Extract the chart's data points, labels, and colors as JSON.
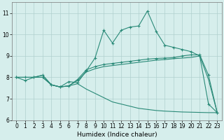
{
  "xlabel": "Humidex (Indice chaleur)",
  "x": [
    0,
    1,
    2,
    3,
    4,
    5,
    6,
    7,
    8,
    9,
    10,
    11,
    12,
    13,
    14,
    15,
    16,
    17,
    18,
    19,
    20,
    21,
    22,
    23
  ],
  "line1": [
    8.0,
    7.85,
    8.0,
    8.0,
    7.65,
    7.55,
    7.8,
    7.75,
    8.3,
    8.9,
    10.2,
    9.6,
    10.2,
    10.35,
    10.4,
    11.1,
    10.15,
    9.5,
    9.4,
    9.3,
    9.2,
    9.0,
    6.75,
    6.35
  ],
  "line2": [
    8.0,
    8.0,
    8.0,
    8.1,
    7.65,
    7.55,
    7.6,
    7.9,
    8.35,
    8.5,
    8.6,
    8.65,
    8.7,
    8.75,
    8.8,
    8.85,
    8.88,
    8.9,
    8.92,
    9.0,
    9.05,
    9.05,
    8.1,
    6.35
  ],
  "line3": [
    8.0,
    8.0,
    8.0,
    8.1,
    7.65,
    7.55,
    7.6,
    7.85,
    8.25,
    8.4,
    8.5,
    8.55,
    8.6,
    8.65,
    8.7,
    8.75,
    8.8,
    8.83,
    8.87,
    8.9,
    8.93,
    9.0,
    7.9,
    6.35
  ],
  "line4": [
    8.0,
    8.0,
    8.0,
    8.0,
    7.65,
    7.55,
    7.6,
    7.7,
    7.45,
    7.25,
    7.05,
    6.85,
    6.75,
    6.65,
    6.55,
    6.5,
    6.45,
    6.42,
    6.4,
    6.38,
    6.37,
    6.36,
    6.35,
    6.35
  ],
  "line_color": "#2a8a78",
  "bg_color": "#d6eeec",
  "grid_color": "#b0d0ce",
  "ylim": [
    6,
    11.5
  ],
  "xlim": [
    -0.5,
    23.5
  ],
  "yticks": [
    6,
    7,
    8,
    9,
    10,
    11
  ],
  "xticks": [
    0,
    1,
    2,
    3,
    4,
    5,
    6,
    7,
    8,
    9,
    10,
    11,
    12,
    13,
    14,
    15,
    16,
    17,
    18,
    19,
    20,
    21,
    22,
    23
  ],
  "tick_fontsize": 5.5,
  "xlabel_fontsize": 6.5
}
